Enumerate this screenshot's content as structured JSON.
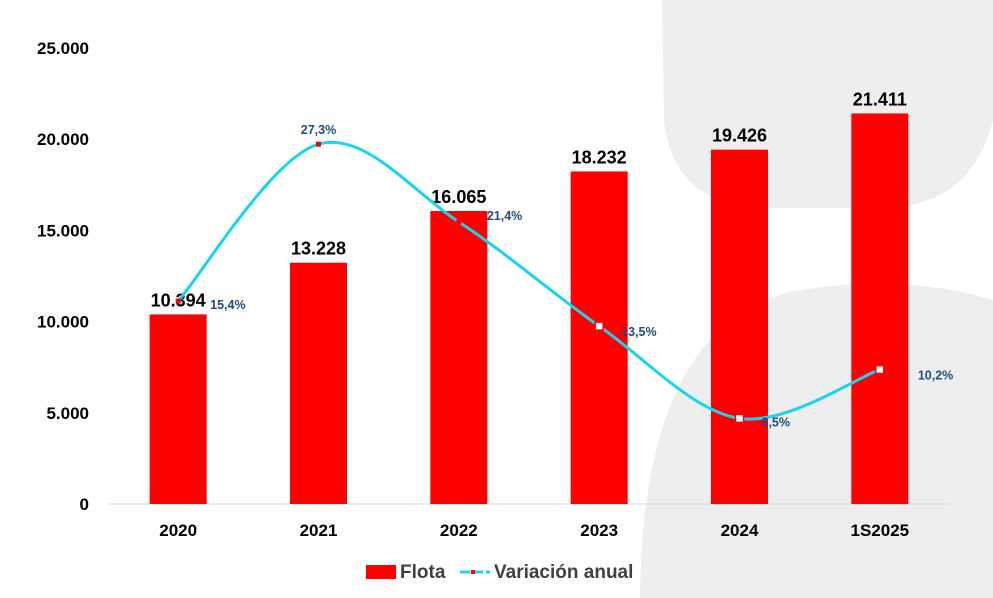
{
  "chart_data": {
    "type": "bar",
    "categories": [
      "2020",
      "2021",
      "2022",
      "2023",
      "2024",
      "1S2025"
    ],
    "series": [
      {
        "name": "Flota",
        "type": "bar",
        "values": [
          10394,
          13228,
          16065,
          18232,
          19426,
          21411
        ],
        "labels": [
          "10.394",
          "13.228",
          "16.065",
          "18.232",
          "19.426",
          "21.411"
        ],
        "color": "#ff0000"
      },
      {
        "name": "Variación anual",
        "type": "line",
        "values": [
          15.4,
          27.3,
          21.4,
          13.5,
          6.5,
          10.2
        ],
        "labels": [
          "15,4%",
          "27,3%",
          "21,4%",
          "13,5%",
          "6,5%",
          "10,2%"
        ],
        "color": "#17d4f2",
        "marker_color": "#ff0000"
      }
    ],
    "ylim": [
      0,
      25000
    ],
    "yticks": [
      0,
      5000,
      10000,
      15000,
      20000,
      25000
    ],
    "ytick_labels": [
      "0",
      "5.000",
      "10.000",
      "15.000",
      "20.000",
      "25.000"
    ],
    "grid": false,
    "legend_position": "bottom"
  },
  "colors": {
    "background_shape": "#eeeeee",
    "axis": "#d9d9d9"
  }
}
